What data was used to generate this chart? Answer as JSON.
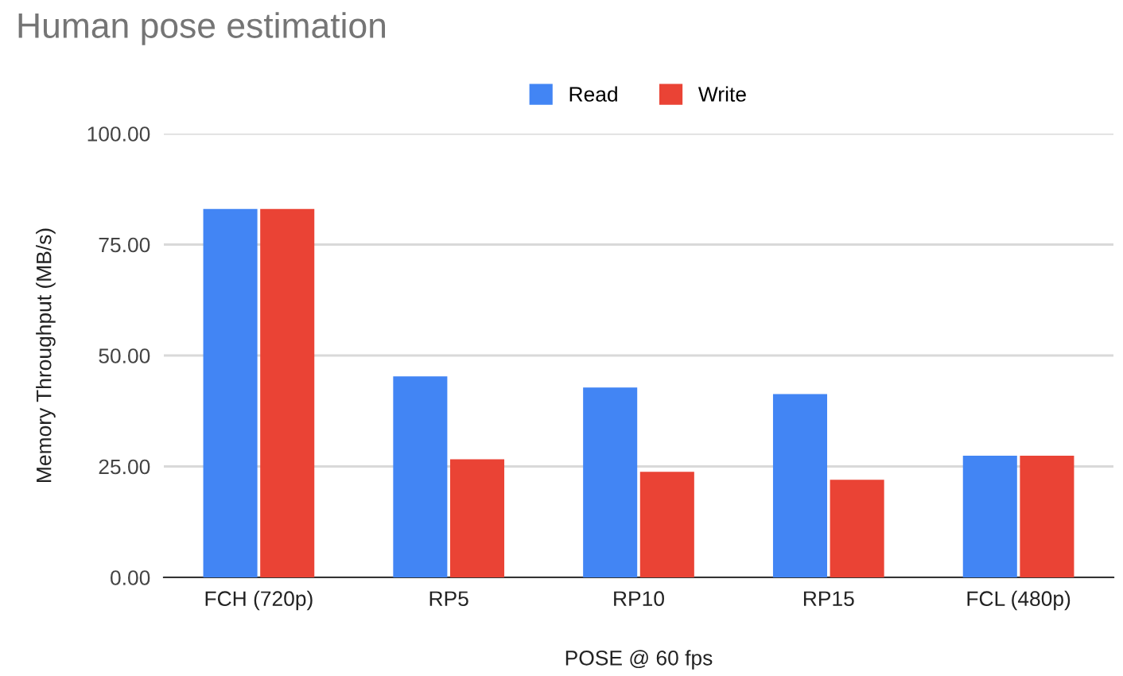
{
  "chart_data": {
    "type": "bar",
    "title": "Human pose estimation",
    "xlabel": "POSE @ 60 fps",
    "ylabel": "Memory Throughput (MB/s)",
    "categories": [
      "FCH (720p)",
      "RP5",
      "RP10",
      "RP15",
      "FCL (480p)"
    ],
    "series": [
      {
        "name": "Read",
        "color": "#4285f4",
        "values": [
          83.0,
          45.3,
          42.8,
          41.3,
          27.4
        ]
      },
      {
        "name": "Write",
        "color": "#ea4335",
        "values": [
          83.0,
          26.6,
          23.8,
          22.0,
          27.4
        ]
      }
    ],
    "ylim": [
      0,
      100
    ],
    "yticks": [
      {
        "value": 0,
        "label": "0.00"
      },
      {
        "value": 25,
        "label": "25.00"
      },
      {
        "value": 50,
        "label": "50.00"
      },
      {
        "value": 75,
        "label": "75.00"
      },
      {
        "value": 100,
        "label": "100.00"
      }
    ],
    "grid": "y",
    "legend": "top"
  }
}
